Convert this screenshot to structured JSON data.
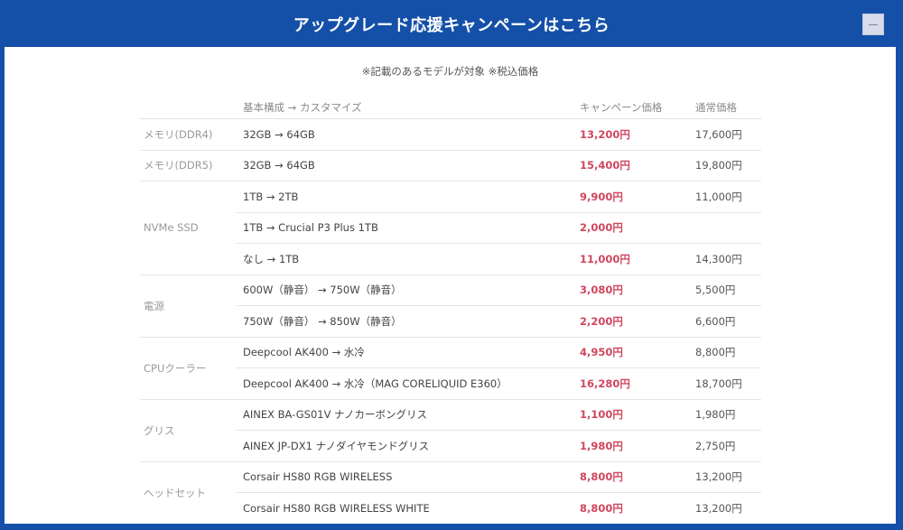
{
  "header": {
    "title": "アップグレード応援キャンペーンはこちら",
    "collapse_icon": "minus-icon",
    "accent_color": "#1450a8"
  },
  "note": "※記載のあるモデルが対象 ※税込価格",
  "table": {
    "columns": [
      "",
      "基本構成 → カスタマイズ",
      "キャンペーン価格",
      "通常価格"
    ],
    "price_color": "#d0475e",
    "groups": [
      {
        "category": "メモリ(DDR4)",
        "rows": [
          {
            "item": "32GB → 64GB",
            "campaign": "13,200円",
            "normal": "17,600円"
          }
        ]
      },
      {
        "category": "メモリ(DDR5)",
        "rows": [
          {
            "item": "32GB → 64GB",
            "campaign": "15,400円",
            "normal": "19,800円"
          }
        ]
      },
      {
        "category": "NVMe SSD",
        "rows": [
          {
            "item": "1TB → 2TB",
            "campaign": "9,900円",
            "normal": "11,000円"
          },
          {
            "item": "1TB → Crucial P3 Plus 1TB",
            "campaign": "2,000円",
            "normal": ""
          },
          {
            "item": "なし → 1TB",
            "campaign": "11,000円",
            "normal": "14,300円"
          }
        ]
      },
      {
        "category": "電源",
        "rows": [
          {
            "item": "600W（静音） → 750W（静音）",
            "campaign": "3,080円",
            "normal": "5,500円"
          },
          {
            "item": "750W（静音） → 850W（静音）",
            "campaign": "2,200円",
            "normal": "6,600円"
          }
        ]
      },
      {
        "category": "CPUクーラー",
        "rows": [
          {
            "item": "Deepcool AK400 → 水冷",
            "campaign": "4,950円",
            "normal": "8,800円"
          },
          {
            "item": "Deepcool AK400 → 水冷（MAG CORELIQUID E360）",
            "campaign": "16,280円",
            "normal": "18,700円"
          }
        ]
      },
      {
        "category": "グリス",
        "rows": [
          {
            "item": "AINEX BA-GS01V ナノカーボングリス",
            "campaign": "1,100円",
            "normal": "1,980円"
          },
          {
            "item": "AINEX JP-DX1 ナノダイヤモンドグリス",
            "campaign": "1,980円",
            "normal": "2,750円"
          }
        ]
      },
      {
        "category": "ヘッドセット",
        "rows": [
          {
            "item": "Corsair HS80 RGB WIRELESS",
            "campaign": "8,800円",
            "normal": "13,200円"
          },
          {
            "item": "Corsair HS80 RGB WIRELESS WHITE",
            "campaign": "8,800円",
            "normal": "13,200円"
          }
        ]
      }
    ]
  }
}
